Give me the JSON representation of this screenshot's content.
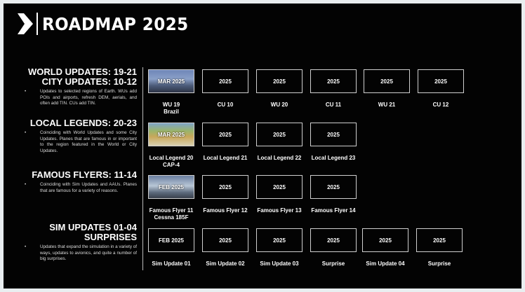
{
  "header": {
    "title": "ROADMAP 2025",
    "logo_icon": "chevron-right-logo"
  },
  "sections": [
    {
      "heading_lines": [
        "WORLD UPDATES: 19-21",
        "CITY UPDATES: 10-12"
      ],
      "bullet": "•",
      "description": "Updates to selected regions of Earth. WUs add POIs and airports, refresh DEM, aerials, and often add TIN. CUs add TIN."
    },
    {
      "heading_lines": [
        "LOCAL LEGENDS: 20-23"
      ],
      "bullet": "•",
      "description": "Coinciding with World Updates and some City Updates. Planes that are famous in or important to the region featured in the World or City Updates."
    },
    {
      "heading_lines": [
        "FAMOUS FLYERS: 11-14"
      ],
      "bullet": "•",
      "description": "Coinciding with Sim Updates and AAUs. Planes that are famous for a variety of reasons."
    },
    {
      "heading_lines": [
        "SIM UPDATES 01-04",
        "SURPRISES"
      ],
      "bullet": "•",
      "description": "Updates that expand the simulation in a variety of ways, updates to avionics, and quite a number of big surprises."
    }
  ],
  "rows": [
    [
      {
        "date": "MAR 2025",
        "label": [
          "WU 19",
          "Brazil"
        ],
        "image": "img1"
      },
      {
        "date": "2025",
        "label": [
          "CU 10"
        ]
      },
      {
        "date": "2025",
        "label": [
          "WU 20"
        ]
      },
      {
        "date": "2025",
        "label": [
          "CU 11"
        ]
      },
      {
        "date": "2025",
        "label": [
          "WU 21"
        ]
      },
      {
        "date": "2025",
        "label": [
          "CU 12"
        ]
      }
    ],
    [
      {
        "date": "MAR 2025",
        "label": [
          "Local Legend 20",
          "CAP-4"
        ],
        "image": "img2"
      },
      {
        "date": "2025",
        "label": [
          "Local Legend 21"
        ]
      },
      {
        "date": "2025",
        "label": [
          "Local Legend 22"
        ]
      },
      {
        "date": "2025",
        "label": [
          "Local Legend 23"
        ]
      }
    ],
    [
      {
        "date": "FEB 2025",
        "label": [
          "Famous Flyer 11",
          "Cessna 185F"
        ],
        "image": "img3"
      },
      {
        "date": "2025",
        "label": [
          "Famous Flyer 12"
        ]
      },
      {
        "date": "2025",
        "label": [
          "Famous Flyer 13"
        ]
      },
      {
        "date": "2025",
        "label": [
          "Famous Flyer 14"
        ]
      }
    ],
    [
      {
        "date": "FEB 2025",
        "label": [
          "Sim Update 01"
        ]
      },
      {
        "date": "2025",
        "label": [
          "Sim Update 02"
        ]
      },
      {
        "date": "2025",
        "label": [
          "Sim Update 03"
        ]
      },
      {
        "date": "2025",
        "label": [
          "Surprise"
        ]
      },
      {
        "date": "2025",
        "label": [
          "Sim Update 04"
        ]
      },
      {
        "date": "2025",
        "label": [
          "Surprise"
        ]
      }
    ]
  ]
}
